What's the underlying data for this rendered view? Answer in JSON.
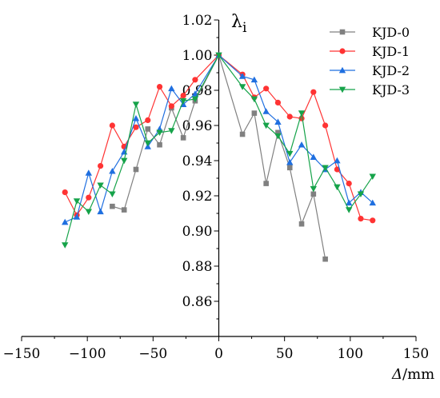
{
  "chart_data": {
    "type": "line",
    "ylabel_main": "λ",
    "ylabel_sub": "i",
    "xlabel_italic": "Δ",
    "xlabel_unit": "/mm",
    "xlim": [
      -150,
      150
    ],
    "ylim": [
      0.84,
      1.02
    ],
    "x_ticks": [
      -150,
      -100,
      -50,
      0,
      50,
      100,
      150
    ],
    "x_tick_labels": [
      "−150",
      "−100",
      "−50",
      "0",
      "50",
      "100",
      "150"
    ],
    "y_ticks": [
      0.86,
      0.88,
      0.9,
      0.92,
      0.94,
      0.96,
      0.98,
      1.0,
      1.02
    ],
    "y_tick_labels": [
      "0.86",
      "0.88",
      "0.90",
      "0.92",
      "0.94",
      "0.96",
      "0.98",
      "1.00",
      "1.02"
    ],
    "grid": false,
    "legend_position": "top-right",
    "series": [
      {
        "name": "KJD-0",
        "color": "#808080",
        "marker": "square",
        "x": [
          -81,
          -72,
          -63,
          -54,
          -45,
          -36,
          -27,
          -18,
          0,
          18,
          27,
          36,
          45,
          54,
          63,
          72,
          81
        ],
        "y": [
          0.914,
          0.912,
          0.935,
          0.958,
          0.949,
          0.97,
          0.953,
          0.974,
          1.0,
          0.955,
          0.967,
          0.927,
          0.956,
          0.936,
          0.904,
          0.921,
          0.884
        ]
      },
      {
        "name": "KJD-1",
        "color": "#ff3333",
        "marker": "circle",
        "x": [
          -117,
          -108,
          -99,
          -90,
          -81,
          -72,
          -63,
          -54,
          -45,
          -36,
          -27,
          -18,
          0,
          18,
          27,
          36,
          45,
          54,
          63,
          72,
          81,
          90,
          99,
          108,
          117
        ],
        "y": [
          0.922,
          0.909,
          0.919,
          0.937,
          0.96,
          0.948,
          0.959,
          0.963,
          0.982,
          0.971,
          0.977,
          0.986,
          1.0,
          0.989,
          0.976,
          0.981,
          0.973,
          0.965,
          0.964,
          0.979,
          0.96,
          0.935,
          0.927,
          0.907,
          0.906
        ]
      },
      {
        "name": "KJD-2",
        "color": "#1f6fe0",
        "marker": "triangle-up",
        "x": [
          -117,
          -108,
          -99,
          -90,
          -81,
          -72,
          -63,
          -54,
          -45,
          -36,
          -27,
          -18,
          0,
          18,
          27,
          36,
          45,
          54,
          63,
          72,
          81,
          90,
          99,
          108,
          117
        ],
        "y": [
          0.905,
          0.908,
          0.933,
          0.911,
          0.934,
          0.945,
          0.964,
          0.948,
          0.958,
          0.981,
          0.972,
          0.978,
          1.0,
          0.988,
          0.986,
          0.968,
          0.962,
          0.939,
          0.949,
          0.942,
          0.935,
          0.94,
          0.916,
          0.922,
          0.916
        ]
      },
      {
        "name": "KJD-3",
        "color": "#16a34a",
        "marker": "triangle-down",
        "x": [
          -117,
          -108,
          -99,
          -90,
          -81,
          -72,
          -63,
          -54,
          -45,
          -36,
          -27,
          -18,
          0,
          18,
          27,
          36,
          45,
          54,
          63,
          72,
          81,
          90,
          99,
          108,
          117
        ],
        "y": [
          0.892,
          0.917,
          0.911,
          0.926,
          0.921,
          0.94,
          0.972,
          0.95,
          0.956,
          0.957,
          0.974,
          0.975,
          1.0,
          0.982,
          0.975,
          0.96,
          0.954,
          0.944,
          0.967,
          0.924,
          0.936,
          0.925,
          0.912,
          0.921,
          0.931
        ]
      }
    ]
  }
}
